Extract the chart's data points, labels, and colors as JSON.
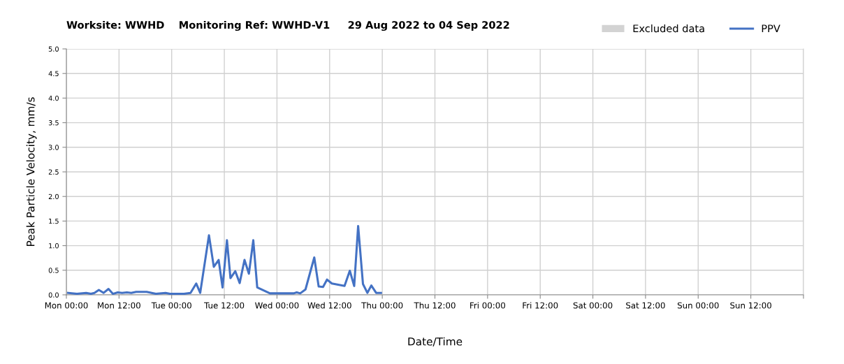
{
  "chart_data": {
    "type": "line",
    "title": "Worksite: WWHD    Monitoring Ref: WWHD-V1     29 Aug 2022 to 04 Sep 2022",
    "xlabel": "Date/Time",
    "ylabel": "Peak Particle Velocity, mm/s",
    "series": [
      {
        "name": "Excluded data",
        "type": "area",
        "color": "#d3d3d3"
      },
      {
        "name": "PPV",
        "color": "#4472c4",
        "x": [
          "2022-08-29T00:24",
          "2022-08-29T02:24",
          "2022-08-29T04:30",
          "2022-08-29T05:36",
          "2022-08-29T06:24",
          "2022-08-29T07:24",
          "2022-08-29T08:30",
          "2022-08-29T09:36",
          "2022-08-29T10:36",
          "2022-08-29T11:42",
          "2022-08-29T12:42",
          "2022-08-29T13:48",
          "2022-08-29T14:48",
          "2022-08-29T15:54",
          "2022-08-29T18:18",
          "2022-08-29T20:24",
          "2022-08-29T22:36",
          "2022-08-29T23:36",
          "2022-08-30T02:48",
          "2022-08-30T04:18",
          "2022-08-30T05:36",
          "2022-08-30T06:30",
          "2022-08-30T08:30",
          "2022-08-30T09:36",
          "2022-08-30T10:42",
          "2022-08-30T11:36",
          "2022-08-30T12:36",
          "2022-08-30T13:24",
          "2022-08-30T14:30",
          "2022-08-30T15:30",
          "2022-08-30T16:36",
          "2022-08-30T17:36",
          "2022-08-30T18:36",
          "2022-08-30T19:30",
          "2022-08-30T22:24",
          "2022-08-31T03:48",
          "2022-08-31T04:30",
          "2022-08-31T05:18",
          "2022-08-31T06:30",
          "2022-08-31T08:30",
          "2022-08-31T09:30",
          "2022-08-31T10:30",
          "2022-08-31T11:24",
          "2022-08-31T12:30",
          "2022-08-31T15:24",
          "2022-08-31T16:36",
          "2022-08-31T17:36",
          "2022-08-31T18:30",
          "2022-08-31T19:36",
          "2022-08-31T20:36",
          "2022-08-31T21:30",
          "2022-08-31T22:36",
          "2022-08-31T23:42"
        ],
        "values": [
          0.04,
          0.02,
          0.04,
          0.02,
          0.04,
          0.1,
          0.04,
          0.12,
          0.02,
          0.05,
          0.04,
          0.05,
          0.04,
          0.06,
          0.06,
          0.02,
          0.04,
          0.02,
          0.02,
          0.04,
          0.23,
          0.04,
          1.21,
          0.57,
          0.71,
          0.15,
          1.11,
          0.34,
          0.48,
          0.24,
          0.71,
          0.43,
          1.11,
          0.15,
          0.03,
          0.03,
          0.05,
          0.03,
          0.11,
          0.76,
          0.17,
          0.16,
          0.31,
          0.23,
          0.18,
          0.49,
          0.18,
          1.4,
          0.22,
          0.04,
          0.19,
          0.04,
          0.04
        ]
      }
    ],
    "xlim": [
      "2022-08-29T00:00",
      "2022-09-05T00:00"
    ],
    "xticks": [
      {
        "value": "2022-08-29T00:00",
        "label": "Mon 00:00"
      },
      {
        "value": "2022-08-29T12:00",
        "label": "Mon 12:00"
      },
      {
        "value": "2022-08-30T00:00",
        "label": "Tue 00:00"
      },
      {
        "value": "2022-08-30T12:00",
        "label": "Tue 12:00"
      },
      {
        "value": "2022-08-31T00:00",
        "label": "Wed 00:00"
      },
      {
        "value": "2022-08-31T12:00",
        "label": "Wed 12:00"
      },
      {
        "value": "2022-09-01T00:00",
        "label": "Thu 00:00"
      },
      {
        "value": "2022-09-01T12:00",
        "label": "Thu 12:00"
      },
      {
        "value": "2022-09-02T00:00",
        "label": "Fri 00:00"
      },
      {
        "value": "2022-09-02T12:00",
        "label": "Fri 12:00"
      },
      {
        "value": "2022-09-03T00:00",
        "label": "Sat 00:00"
      },
      {
        "value": "2022-09-03T12:00",
        "label": "Sat 12:00"
      },
      {
        "value": "2022-09-04T00:00",
        "label": "Sun 00:00"
      },
      {
        "value": "2022-09-04T12:00",
        "label": "Sun 12:00"
      },
      {
        "value": "2022-09-05T00:00",
        "label": null
      }
    ],
    "ylim": [
      0,
      5
    ],
    "yticks": [
      {
        "value": 0,
        "label": "0.0"
      },
      {
        "value": 0.5,
        "label": "0.5"
      },
      {
        "value": 1,
        "label": "1.0"
      },
      {
        "value": 1.5,
        "label": "1.5"
      },
      {
        "value": 2,
        "label": "2.0"
      },
      {
        "value": 2.5,
        "label": "2.5"
      },
      {
        "value": 3,
        "label": "3.0"
      },
      {
        "value": 3.5,
        "label": "3.5"
      },
      {
        "value": 4,
        "label": "4.0"
      },
      {
        "value": 4.5,
        "label": "4.5"
      },
      {
        "value": 5,
        "label": "5.0"
      }
    ],
    "grid": true,
    "legend": "top right",
    "marker": "none",
    "line_style": "solid"
  }
}
